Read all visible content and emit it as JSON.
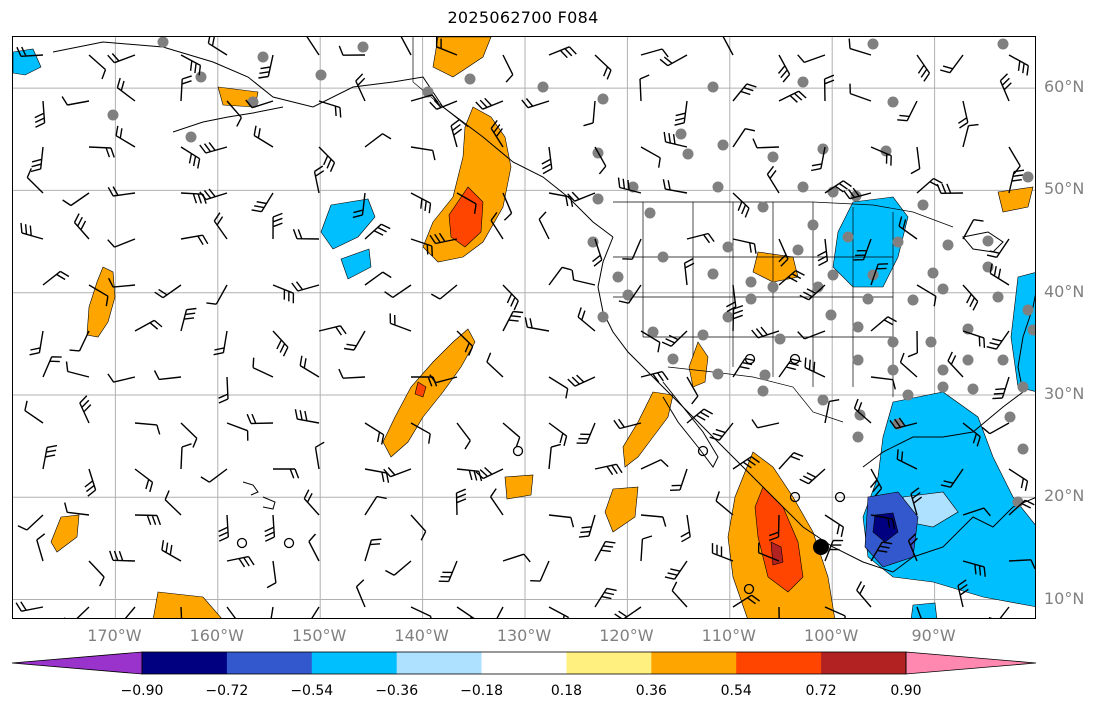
{
  "title": "2025062700 F084",
  "map": {
    "lon_range": [
      -180,
      -80
    ],
    "lat_range": [
      8,
      65
    ],
    "lat_ticks": [
      {
        "value": 10,
        "label": "10°N"
      },
      {
        "value": 20,
        "label": "20°N"
      },
      {
        "value": 30,
        "label": "30°N"
      },
      {
        "value": 40,
        "label": "40°N"
      },
      {
        "value": 50,
        "label": "50°N"
      },
      {
        "value": 60,
        "label": "60°N"
      }
    ],
    "lon_ticks": [
      {
        "value": -170,
        "label": "170°W"
      },
      {
        "value": -160,
        "label": "160°W"
      },
      {
        "value": -150,
        "label": "150°W"
      },
      {
        "value": -140,
        "label": "140°W"
      },
      {
        "value": -130,
        "label": "130°W"
      },
      {
        "value": -120,
        "label": "120°W"
      },
      {
        "value": -110,
        "label": "110°W"
      },
      {
        "value": -100,
        "label": "100°W"
      },
      {
        "value": -90,
        "label": "90°W"
      }
    ],
    "grid": true,
    "land_outline_color": "#000000",
    "grid_color": "#b0b0b0",
    "station_color": "#808080"
  },
  "colorbar": {
    "colors": [
      "#9933cc",
      "#000080",
      "#3357cc",
      "#00bfff",
      "#aee0ff",
      "#ffffff",
      "#fff080",
      "#ffa500",
      "#ff4500",
      "#b22222",
      "#ff88b0"
    ],
    "tick_labels": [
      "−0.90",
      "−0.72",
      "−0.54",
      "−0.36",
      "−0.18",
      "0.18",
      "0.36",
      "0.54",
      "0.72",
      "0.90"
    ],
    "extend": "both"
  }
}
